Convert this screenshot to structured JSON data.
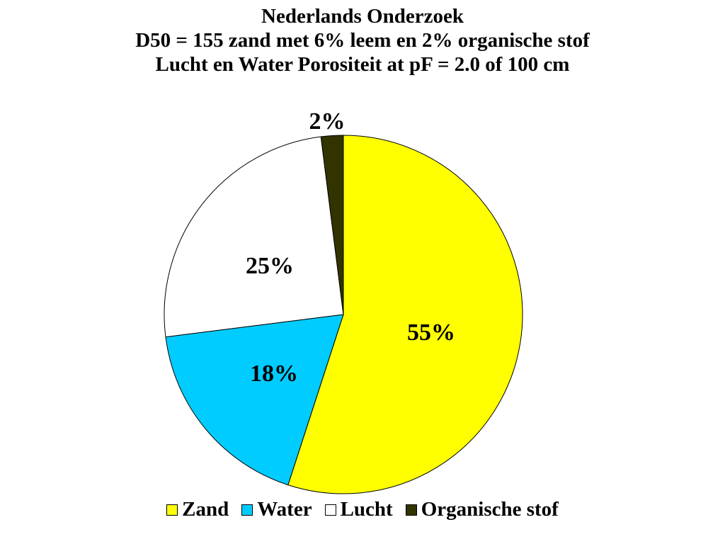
{
  "chart_data": {
    "type": "pie",
    "title_lines": [
      "Nederlands Onderzoek",
      "D50 = 155 zand met 6% leem en 2% organische stof",
      "Lucht en Water Porositeit at pF = 2.0 of 100 cm"
    ],
    "start_angle_deg": 0,
    "direction": "clockwise",
    "legend_position": "bottom",
    "slices": [
      {
        "name": "Zand",
        "value": 55,
        "label": "55%",
        "color": "#FFFF00"
      },
      {
        "name": "Water",
        "value": 18,
        "label": "18%",
        "color": "#00CCFF"
      },
      {
        "name": "Lucht",
        "value": 25,
        "label": "25%",
        "color": "#FFFFFF"
      },
      {
        "name": "Organische stof",
        "value": 2,
        "label": "2%",
        "color": "#333300"
      }
    ]
  }
}
